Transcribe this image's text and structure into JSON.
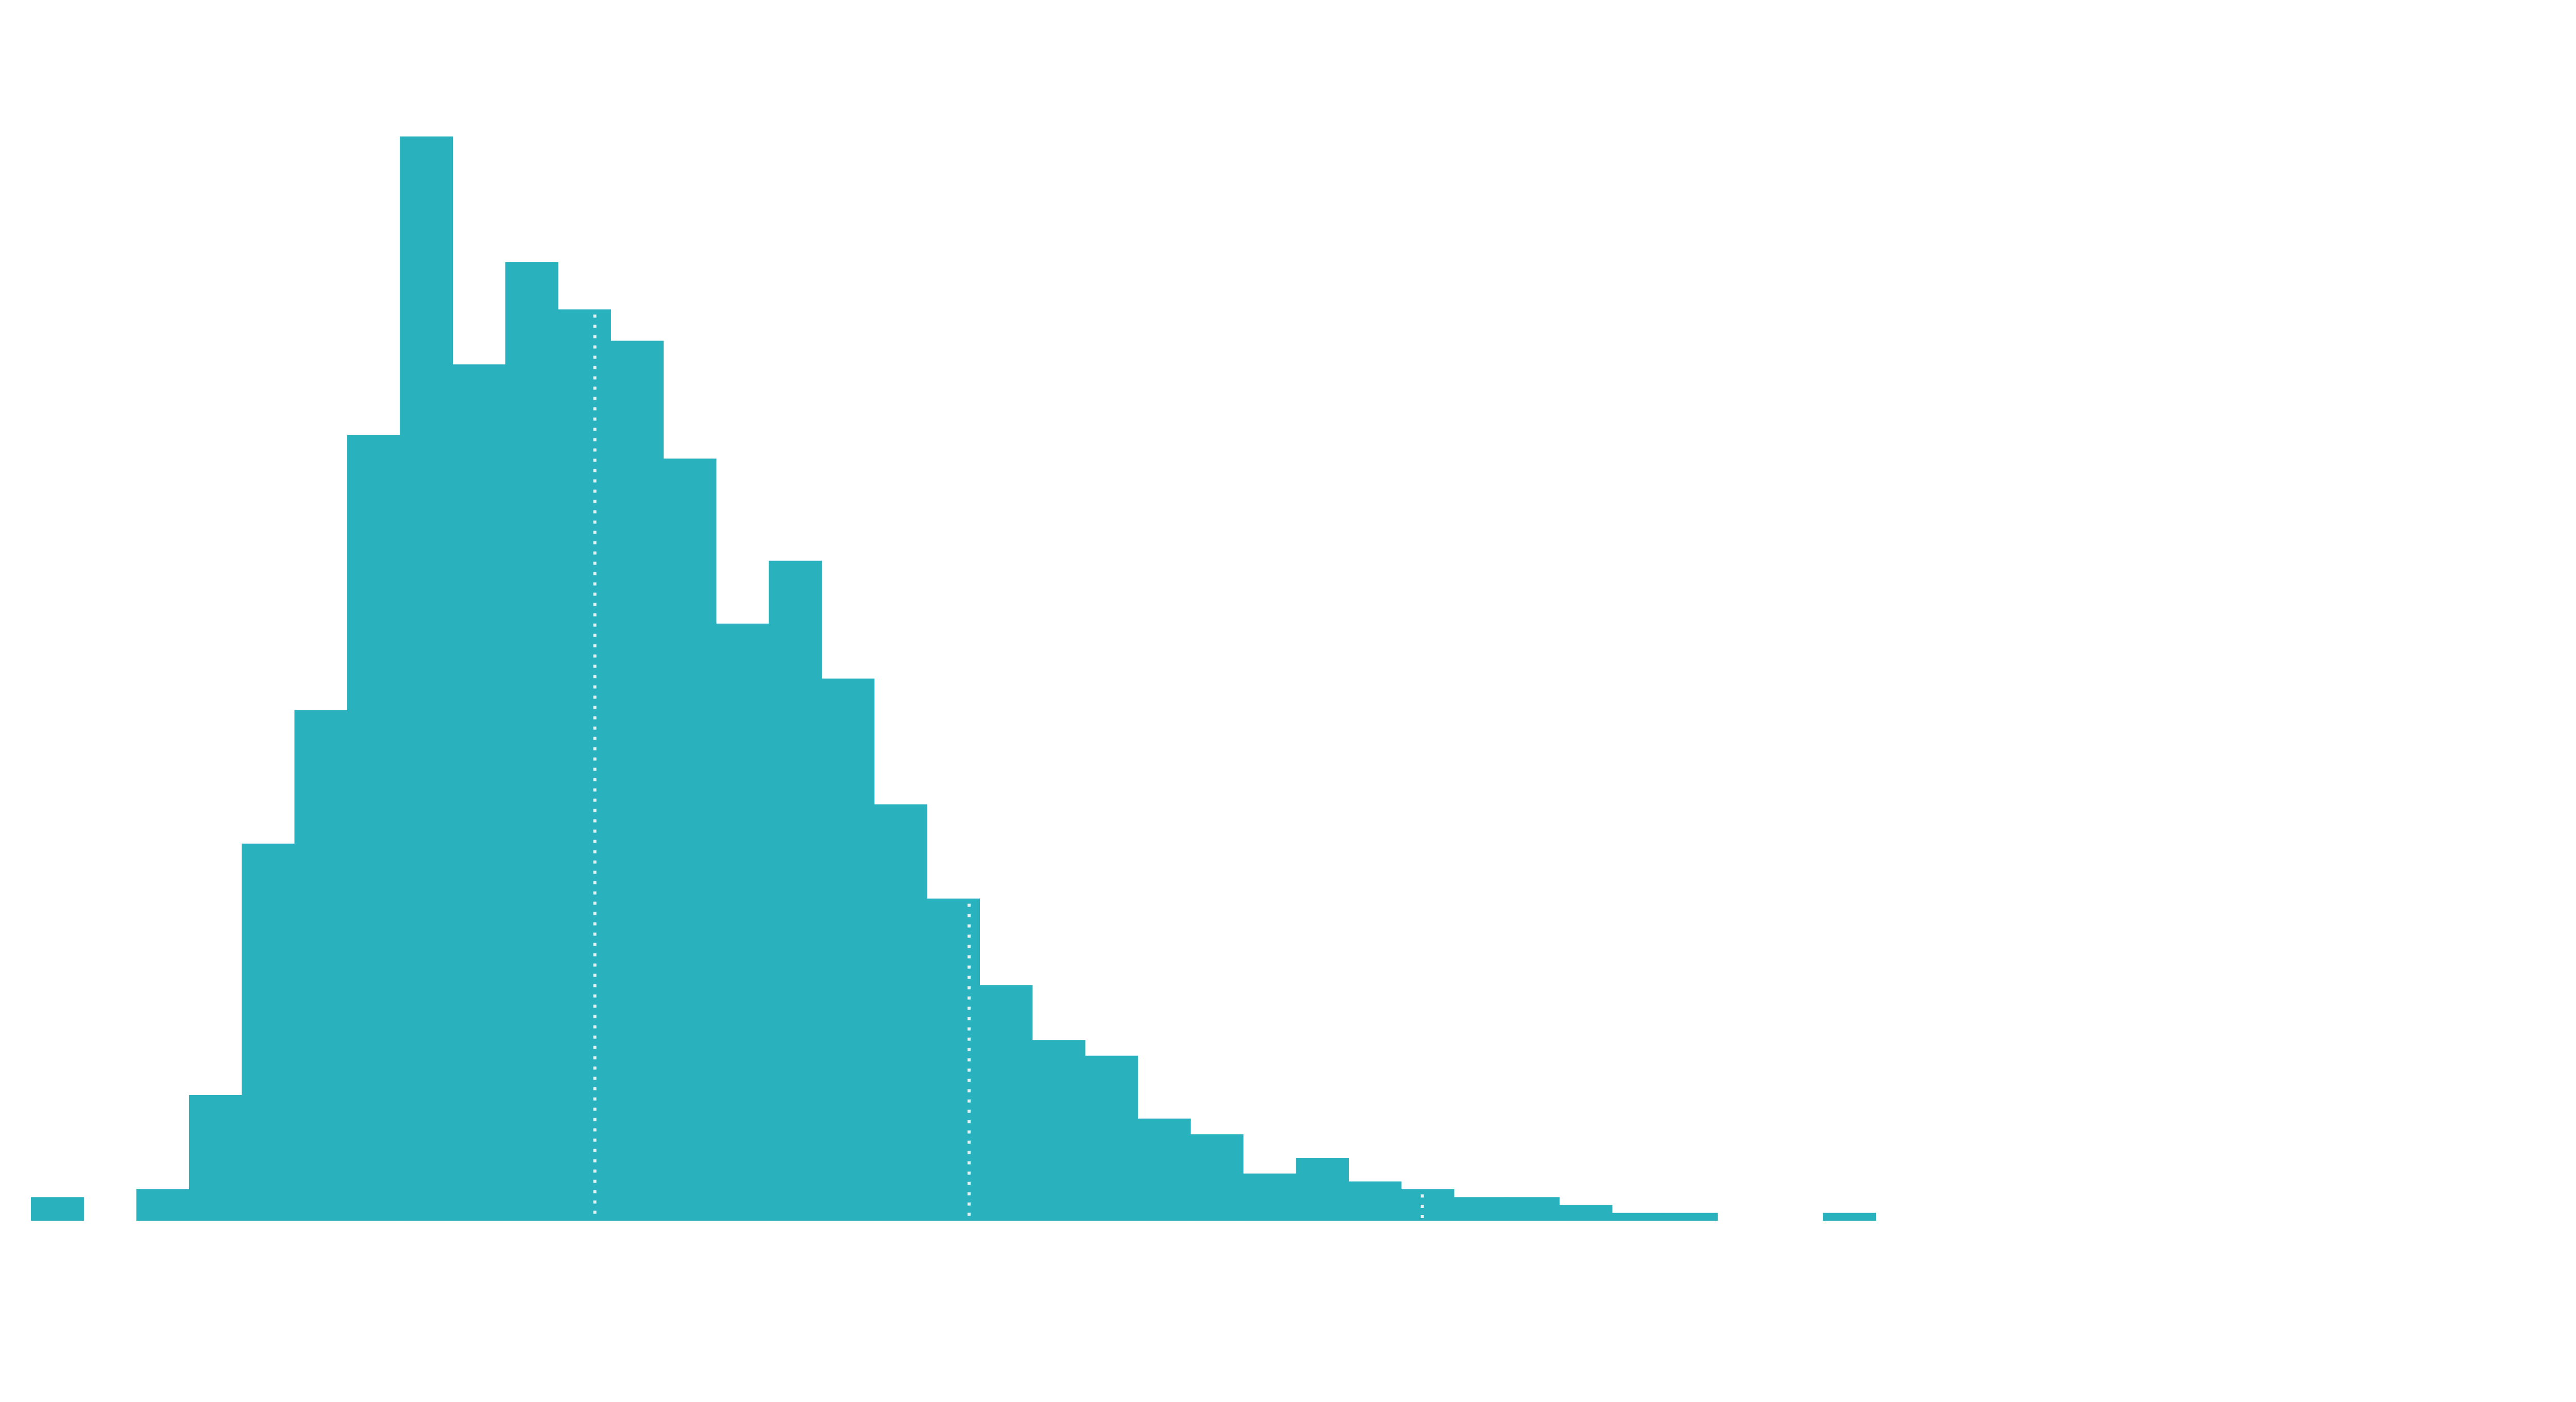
{
  "chart_data": {
    "type": "bar",
    "subtype": "histogram",
    "bar_color": "#29B2BE",
    "marker_line_color": "#FFFFFF",
    "axes_visible": false,
    "grid": false,
    "legend": "none",
    "bins": 50,
    "ylim": [
      0,
      140
    ],
    "counts": [
      3,
      0,
      4,
      16,
      48,
      65,
      100,
      138,
      109,
      122,
      116,
      112,
      97,
      76,
      84,
      69,
      53,
      41,
      30,
      23,
      21,
      13,
      11,
      6,
      8,
      5,
      4,
      3,
      3,
      2,
      1,
      1,
      0,
      0,
      1,
      0,
      0,
      0,
      0,
      0,
      0,
      0,
      0,
      0,
      0,
      0,
      0,
      0,
      0,
      1
    ],
    "reference_lines_bin": [
      10.7,
      17.8,
      26.4
    ]
  }
}
